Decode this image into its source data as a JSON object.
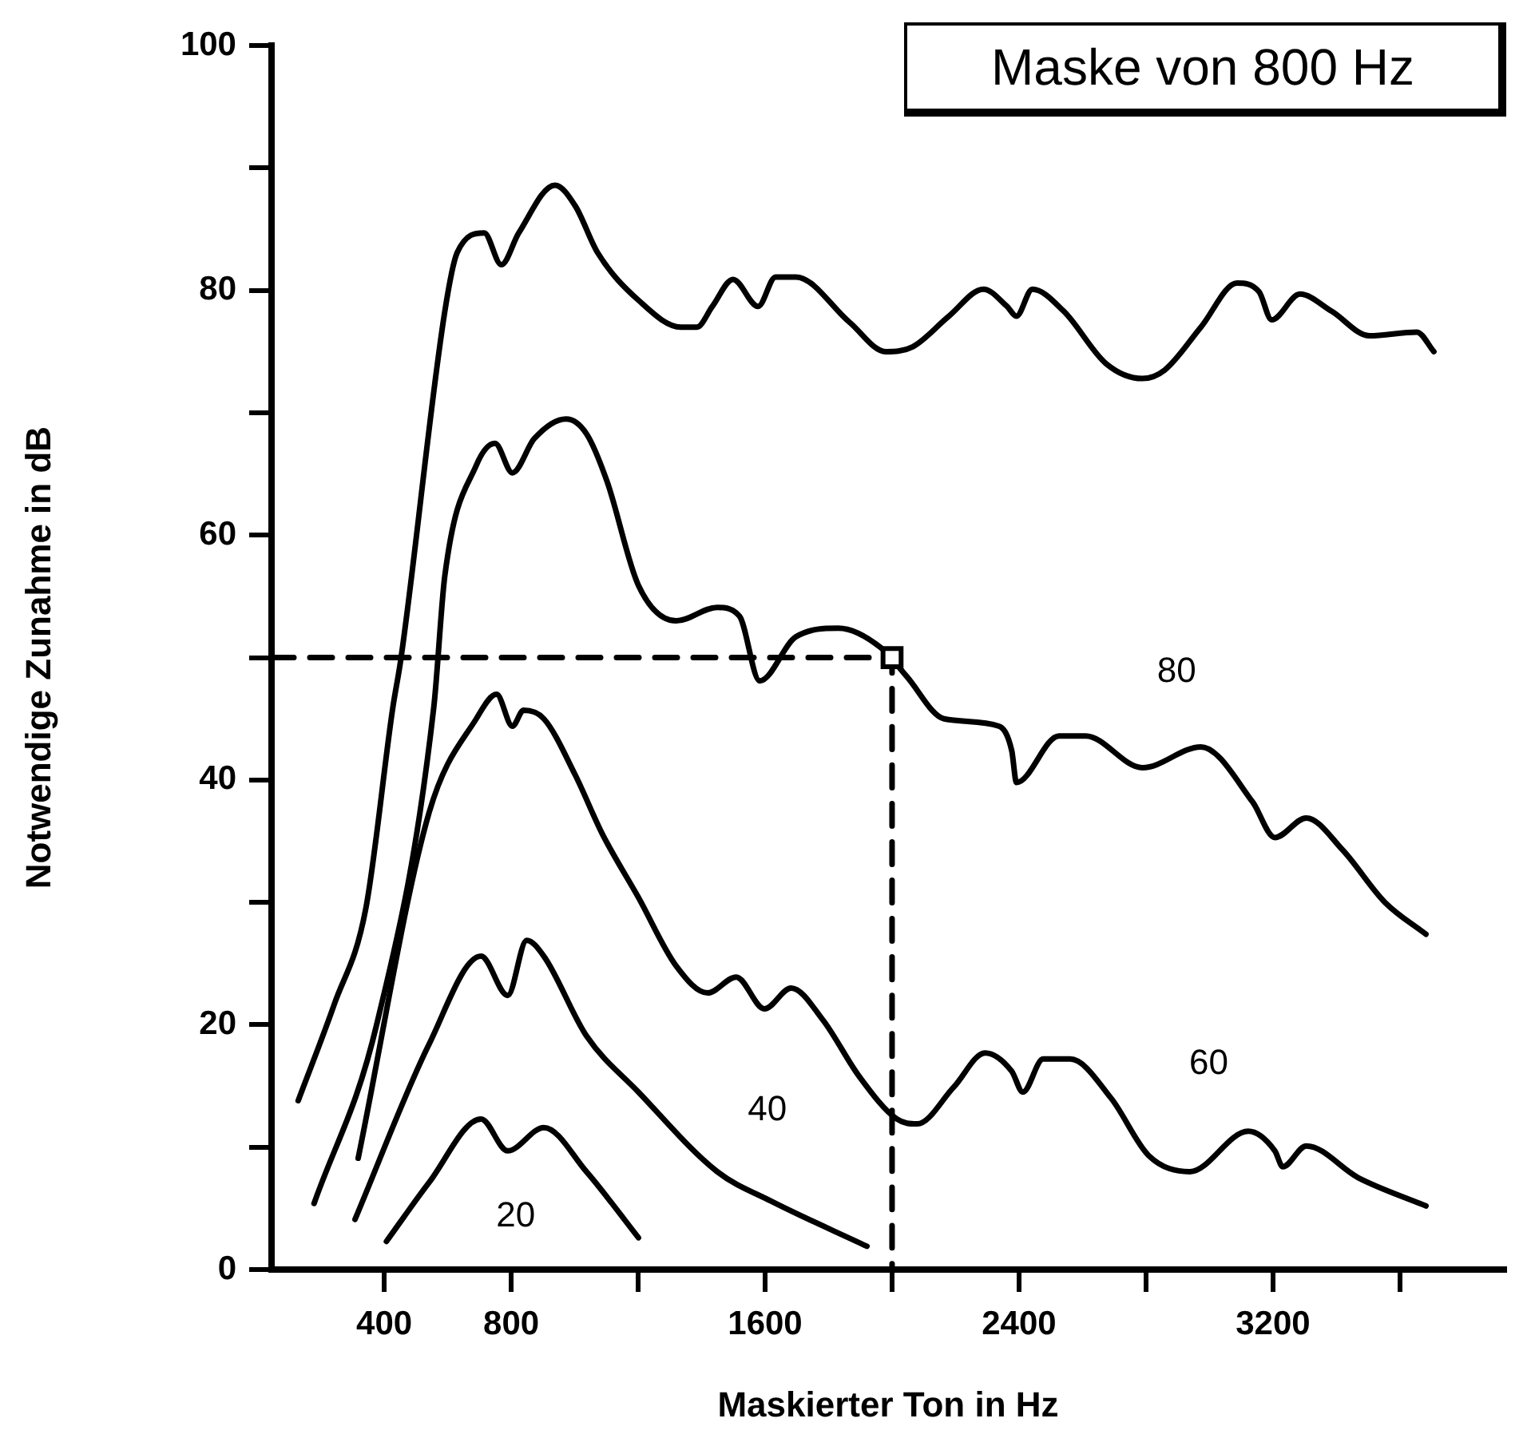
{
  "chart_data": {
    "type": "line",
    "title": "Maske von 800 Hz",
    "xlabel": "Maskierter Ton in Hz",
    "ylabel": "Notwendige Zunahme in dB",
    "xlim": [
      45,
      3930
    ],
    "xticks": [
      400,
      800,
      {
        "value": 1200,
        "label": null
      },
      1600,
      {
        "value": 2000,
        "label": null
      },
      2400,
      {
        "value": 2800,
        "label": null
      },
      3200,
      {
        "value": 3600,
        "label": null
      }
    ],
    "ylim": [
      0,
      100
    ],
    "yticks": [
      0,
      {
        "value": 10,
        "label": null
      },
      20,
      {
        "value": 30,
        "label": null
      },
      40,
      {
        "value": 50,
        "label": null
      },
      60,
      {
        "value": 70,
        "label": null
      },
      80,
      {
        "value": 90,
        "label": null
      },
      100
    ],
    "grid": false,
    "legend": false,
    "marker": "none",
    "line_style": "solid",
    "series": [
      {
        "color": "#000000",
        "x": [
          129,
          243,
          342,
          427,
          452,
          591,
          630,
          715,
          769,
          824,
          938,
          1002,
          1072,
          1201,
          1335,
          1385,
          1434,
          1499,
          1578,
          1633,
          1697,
          1866,
          1980,
          2065,
          2179,
          2288,
          2362,
          2392,
          2442,
          2541,
          2675,
          2789,
          2859,
          2973,
          3087,
          3156,
          3196,
          3285,
          3385,
          3504,
          3653,
          3707
        ],
        "values": [
          13.8,
          21.7,
          29.5,
          45.9,
          49.8,
          78.3,
          83.1,
          84.7,
          82.1,
          84.7,
          88.6,
          86.9,
          83.1,
          79.2,
          77.0,
          77.0,
          78.7,
          80.9,
          78.7,
          81.1,
          81.1,
          77.4,
          75.0,
          75.4,
          77.9,
          80.1,
          78.7,
          77.9,
          80.1,
          78.3,
          74.0,
          72.8,
          73.5,
          77.0,
          80.6,
          79.9,
          77.6,
          79.7,
          78.3,
          76.3,
          76.6,
          75.0
        ]
      },
      {
        "name": "80",
        "color": "#000000",
        "x": [
          179,
          377,
          556,
          591,
          690,
          749,
          804,
          873,
          973,
          1037,
          1102,
          1201,
          1320,
          1449,
          1519,
          1583,
          1697,
          1831,
          1965,
          2045,
          2164,
          2337,
          2377,
          2392,
          2526,
          2610,
          2789,
          2973,
          3136,
          3206,
          3305,
          3419,
          3553,
          3682
        ],
        "values": [
          5.4,
          20.1,
          45.9,
          56.7,
          65.7,
          67.5,
          65.1,
          67.9,
          69.5,
          68.3,
          64.4,
          55.9,
          53.0,
          54.1,
          53.4,
          48.1,
          51.7,
          52.4,
          50.8,
          48.5,
          45.0,
          44.4,
          42.4,
          39.8,
          43.6,
          43.6,
          41.0,
          42.7,
          38.2,
          35.3,
          36.9,
          34.3,
          30.0,
          27.4
        ]
      },
      {
        "name": "60",
        "color": "#000000",
        "x": [
          318,
          541,
          690,
          754,
          804,
          839,
          903,
          1002,
          1087,
          1201,
          1320,
          1419,
          1509,
          1598,
          1682,
          1782,
          1896,
          2015,
          2079,
          2194,
          2293,
          2377,
          2412,
          2476,
          2561,
          2690,
          2809,
          2938,
          3122,
          3206,
          3231,
          3305,
          3469,
          3682
        ],
        "values": [
          9.1,
          37.3,
          45.0,
          47.0,
          44.4,
          45.7,
          45.0,
          40.4,
          35.6,
          30.4,
          24.8,
          22.6,
          23.9,
          21.3,
          23.0,
          20.4,
          15.8,
          12.3,
          11.9,
          14.9,
          17.7,
          16.2,
          14.5,
          17.2,
          17.2,
          14.0,
          9.3,
          8.0,
          11.3,
          9.7,
          8.4,
          10.1,
          7.5,
          5.2
        ]
      },
      {
        "name": "40",
        "color": "#000000",
        "x": [
          308,
          541,
          705,
          789,
          849,
          903,
          1037,
          1201,
          1449,
          1618,
          1921
        ],
        "values": [
          4.1,
          18.4,
          25.6,
          22.4,
          26.9,
          25.6,
          19.1,
          14.5,
          8.0,
          5.6,
          1.9
        ]
      },
      {
        "name": "20",
        "color": "#000000",
        "x": [
          407,
          541,
          705,
          789,
          903,
          1037,
          1201
        ],
        "values": [
          2.3,
          7.1,
          12.3,
          9.7,
          11.6,
          8.0,
          2.6
        ]
      },
      {
        "color": "#000000",
        "line_style": "dashed",
        "x": [
          45,
          2000,
          2000
        ],
        "values": [
          50,
          50,
          0
        ]
      },
      {
        "type": "scatter",
        "color": "#000000",
        "marker": "square",
        "x": [
          2000
        ],
        "values": [
          50
        ]
      }
    ]
  }
}
